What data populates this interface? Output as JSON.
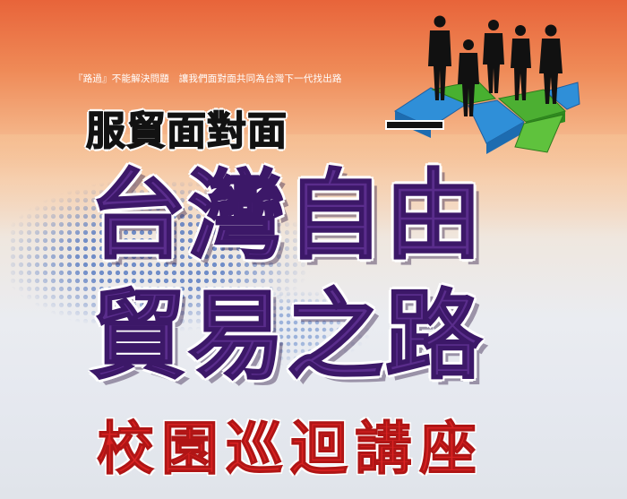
{
  "poster": {
    "tagline": "『路過』不能解決問題　讓我們面對面共同為台灣下一代找出路",
    "subtitle": "服貿面對面",
    "title_line1": "台灣自由",
    "title_line2": "貿易之路",
    "event": "校園巡迴講座"
  },
  "colors": {
    "title_purple": "#5a2d8c",
    "event_red": "#d92222",
    "subtitle_black": "#121212",
    "background_top": "#e8643a",
    "platform_green": "#4caf32",
    "platform_blue": "#2f8fd8"
  },
  "icons": {
    "decoration": "world-map-dots",
    "figures": "business-people-silhouettes-on-platform"
  }
}
